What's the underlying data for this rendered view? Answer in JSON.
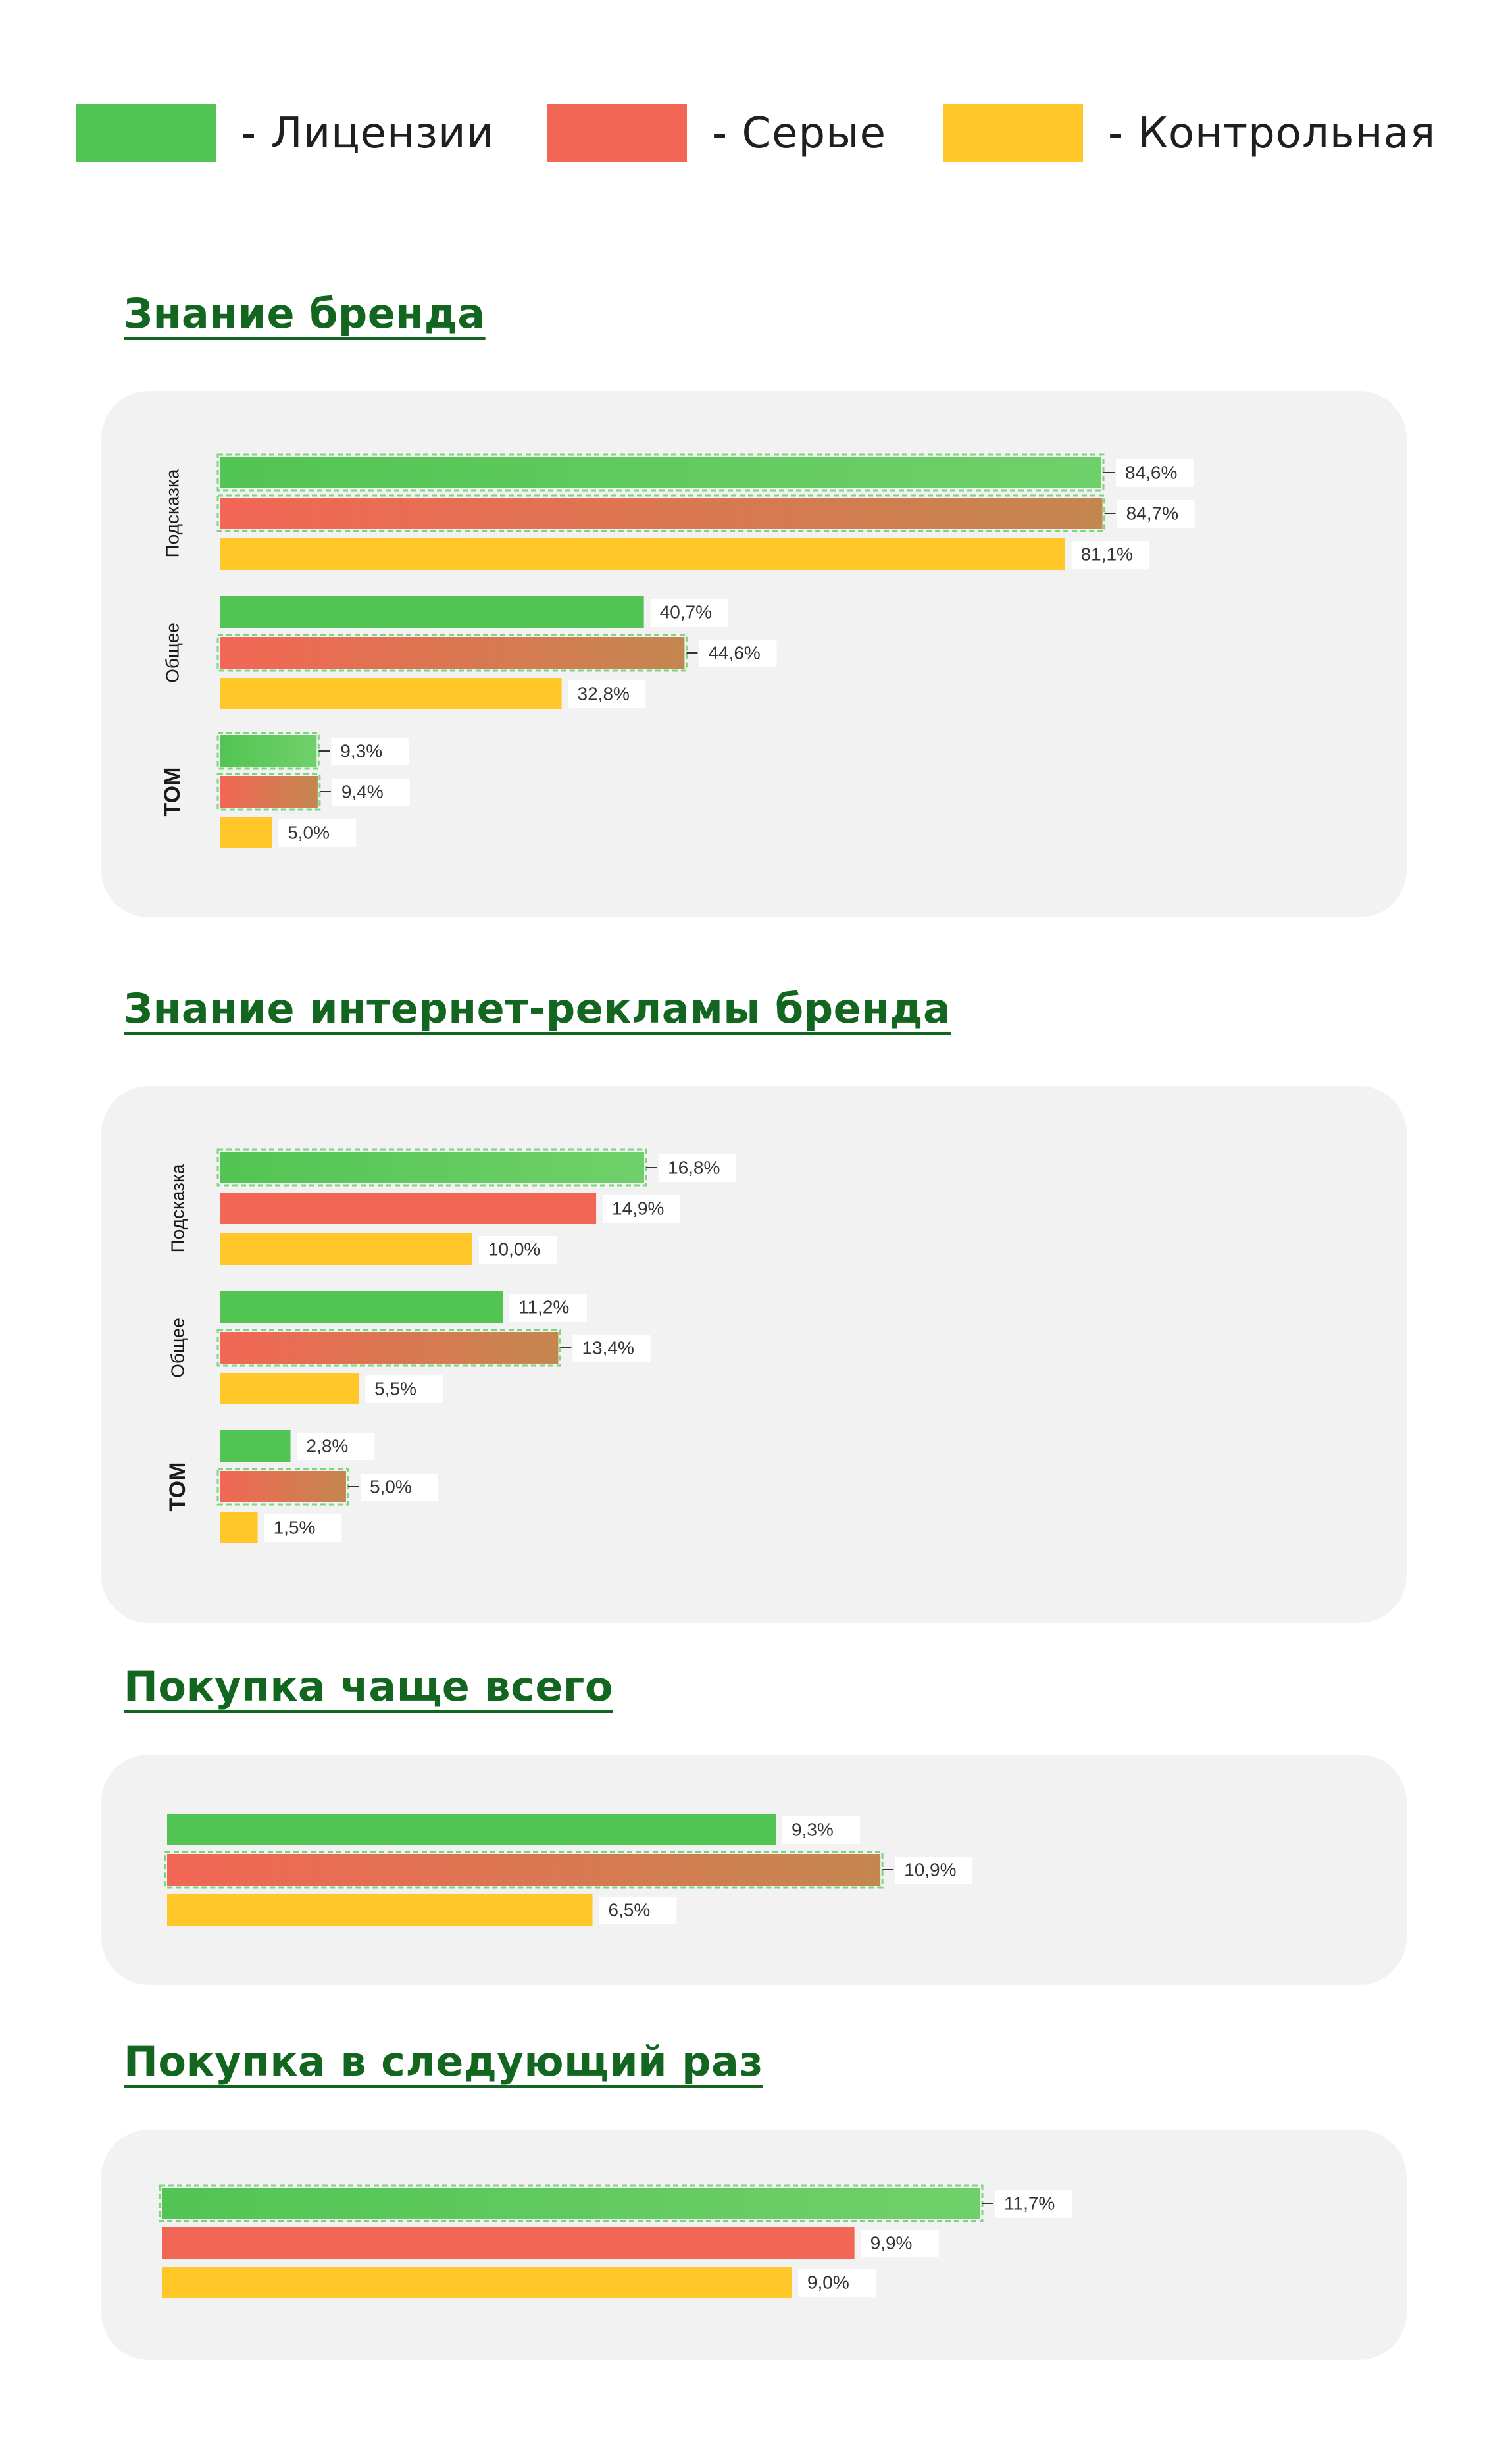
{
  "legend": {
    "items": [
      {
        "label": "- Лицензии",
        "color": "#52c453"
      },
      {
        "label": "- Серые",
        "color": "#f26655"
      },
      {
        "label": "- Контрольная",
        "color": "#ffc728"
      }
    ]
  },
  "colors": {
    "licenses": "#52c453",
    "licenses_light": "#6fd06a",
    "gray": "#f26655",
    "gray_dark": "#c4864f",
    "control": "#ffc728",
    "title": "#13661f",
    "highlight": "#7ad67c",
    "panel_bg": "#f2f2f2"
  },
  "chart_data": [
    {
      "type": "bar",
      "orientation": "horizontal",
      "title": "Знание бренда",
      "xlim": [
        0,
        100
      ],
      "categories": [
        "Подсказка",
        "Общее",
        "TOM"
      ],
      "series": [
        {
          "name": "Лицензии",
          "values": [
            84.6,
            40.7,
            9.3
          ],
          "labels": [
            "84,6%",
            "40,7%",
            "9,3%"
          ]
        },
        {
          "name": "Серые",
          "values": [
            84.7,
            44.6,
            9.4
          ],
          "labels": [
            "84,7%",
            "44,6%",
            "9,4%"
          ]
        },
        {
          "name": "Контрольная",
          "values": [
            81.1,
            32.8,
            5.0
          ],
          "labels": [
            "81,1%",
            "32,8%",
            "5,0%"
          ]
        }
      ],
      "highlighted": [
        [
          true,
          true,
          false
        ],
        [
          false,
          true,
          false
        ],
        [
          true,
          true,
          false
        ]
      ]
    },
    {
      "type": "bar",
      "orientation": "horizontal",
      "title": "Знание интернет-рекламы бренда",
      "xlim": [
        0,
        20
      ],
      "categories": [
        "Подсказка",
        "Общее",
        "TOM"
      ],
      "series": [
        {
          "name": "Лицензии",
          "values": [
            16.8,
            11.2,
            2.8
          ],
          "labels": [
            "16,8%",
            "11,2%",
            "2,8%"
          ]
        },
        {
          "name": "Серые",
          "values": [
            14.9,
            13.4,
            5.0
          ],
          "labels": [
            "14,9%",
            "13,4%",
            "5,0%"
          ]
        },
        {
          "name": "Контрольная",
          "values": [
            10.0,
            5.5,
            1.5
          ],
          "labels": [
            "10,0%",
            "5,5%",
            "1,5%"
          ]
        }
      ],
      "highlighted": [
        [
          true,
          false,
          false
        ],
        [
          false,
          true,
          false
        ],
        [
          false,
          true,
          false
        ]
      ]
    },
    {
      "type": "bar",
      "orientation": "horizontal",
      "title": "Покупка чаще всего",
      "xlim": [
        0,
        18
      ],
      "categories": [
        ""
      ],
      "series": [
        {
          "name": "Лицензии",
          "values": [
            9.3
          ],
          "labels": [
            "9,3%"
          ]
        },
        {
          "name": "Серые",
          "values": [
            10.9
          ],
          "labels": [
            "10,9%"
          ]
        },
        {
          "name": "Контрольная",
          "values": [
            6.5
          ],
          "labels": [
            "6,5%"
          ]
        }
      ],
      "highlighted": [
        [
          false,
          true,
          false
        ]
      ]
    },
    {
      "type": "bar",
      "orientation": "horizontal",
      "title": "Покупка в следующий раз",
      "xlim": [
        0,
        16
      ],
      "categories": [
        ""
      ],
      "series": [
        {
          "name": "Лицензии",
          "values": [
            11.7
          ],
          "labels": [
            "11,7%"
          ]
        },
        {
          "name": "Серые",
          "values": [
            9.9
          ],
          "labels": [
            "9,9%"
          ]
        },
        {
          "name": "Контрольная",
          "values": [
            9.0
          ],
          "labels": [
            "9,0%"
          ]
        }
      ],
      "highlighted": [
        [
          true,
          false,
          false
        ]
      ]
    }
  ]
}
